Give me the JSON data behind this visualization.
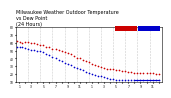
{
  "title": "Milwaukee Weather Outdoor Temperature\nvs Dew Point\n(24 Hours)",
  "title_fontsize": 3.5,
  "background_color": "#ffffff",
  "plot_bg_color": "#ffffff",
  "grid_color": "#cccccc",
  "xlim": [
    0,
    24
  ],
  "ylim": [
    10,
    80
  ],
  "yticks": [
    10,
    20,
    30,
    40,
    50,
    60,
    70,
    80
  ],
  "ytick_labels": [
    "10",
    "20",
    "30",
    "40",
    "50",
    "60",
    "70",
    "80"
  ],
  "xtick_positions": [
    0.5,
    1.5,
    2.5,
    3.5,
    4.5,
    5.5,
    6.5,
    7.5,
    8.5,
    9.5,
    10.5,
    11.5,
    12.5,
    13.5,
    14.5,
    15.5,
    16.5,
    17.5,
    18.5,
    19.5,
    20.5,
    21.5,
    22.5,
    23.5
  ],
  "xtick_labels": [
    "1",
    "",
    "3",
    "",
    "5",
    "",
    "7",
    "",
    "9",
    "",
    "11",
    "",
    "1",
    "",
    "3",
    "",
    "5",
    "",
    "7",
    "",
    "9",
    "",
    "11",
    ""
  ],
  "temp_color": "#cc0000",
  "dew_color": "#0000cc",
  "temp_x": [
    0.2,
    0.6,
    1.0,
    1.5,
    2.0,
    2.5,
    3.0,
    3.5,
    4.0,
    4.5,
    5.0,
    5.5,
    6.0,
    6.5,
    7.0,
    7.5,
    8.0,
    8.5,
    9.0,
    9.5,
    10.0,
    10.5,
    11.0,
    11.5,
    12.0,
    12.5,
    13.0,
    13.5,
    14.0,
    14.5,
    15.0,
    15.5,
    16.0,
    16.5,
    17.0,
    17.5,
    18.0,
    18.5,
    19.0,
    19.5,
    20.0,
    20.5,
    21.0,
    21.5,
    22.0,
    22.5,
    23.0,
    23.5
  ],
  "temp_y": [
    62,
    61,
    60,
    61,
    61,
    60,
    59,
    58,
    57,
    57,
    55,
    54,
    52,
    52,
    51,
    50,
    48,
    47,
    45,
    43,
    41,
    40,
    38,
    37,
    35,
    33,
    31,
    30,
    29,
    28,
    27,
    27,
    26,
    25,
    25,
    24,
    24,
    23,
    23,
    22,
    22,
    21,
    21,
    21,
    21,
    21,
    20,
    20
  ],
  "dew_x": [
    0.2,
    0.6,
    1.0,
    1.5,
    2.0,
    2.5,
    3.0,
    3.5,
    4.0,
    4.5,
    5.0,
    5.5,
    6.0,
    6.5,
    7.0,
    7.5,
    8.0,
    8.5,
    9.0,
    9.5,
    10.0,
    10.5,
    11.0,
    11.5,
    12.0,
    12.5,
    13.0,
    13.5,
    14.0,
    14.5,
    15.0,
    15.5,
    16.0,
    16.5,
    17.0,
    17.5,
    18.0,
    18.5,
    19.0,
    19.5,
    20.0,
    20.5,
    21.0,
    21.5,
    22.0,
    22.5,
    23.0,
    23.5
  ],
  "dew_y": [
    55,
    55,
    54,
    53,
    52,
    51,
    51,
    50,
    49,
    48,
    46,
    44,
    42,
    40,
    38,
    37,
    34,
    33,
    31,
    29,
    28,
    26,
    25,
    23,
    22,
    20,
    19,
    18,
    17,
    16,
    15,
    14,
    14,
    13,
    13,
    12,
    12,
    12,
    12,
    12,
    12,
    12,
    12,
    12,
    12,
    12,
    12,
    12
  ],
  "dew_line_x": [
    19.5,
    23.5
  ],
  "dew_line_y": [
    12,
    12
  ],
  "vlines_x": [
    2,
    4,
    6,
    8,
    10,
    12,
    14,
    16,
    18,
    20,
    22
  ],
  "dot_size": 1.5
}
